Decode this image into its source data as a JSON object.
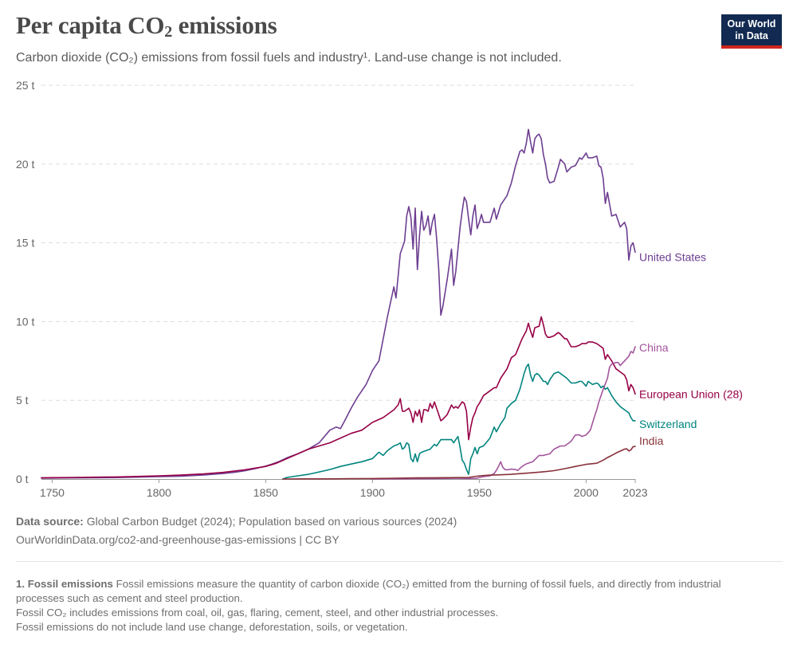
{
  "header": {
    "title_main": "Per capita CO",
    "title_sub": "2",
    "title_end": " emissions",
    "subtitle": "Carbon dioxide (CO₂) emissions from fossil fuels and industry¹. Land-use change is not included.",
    "logo_line1": "Our World",
    "logo_line2": "in Data"
  },
  "chart_data": {
    "type": "line",
    "title": "Per capita CO₂ emissions",
    "xlabel": "",
    "ylabel": "",
    "xlim": [
      1745,
      2023
    ],
    "ylim": [
      0,
      25
    ],
    "x_ticks": [
      1750,
      1800,
      1850,
      1900,
      1950,
      2000,
      2023
    ],
    "x_tick_labels": [
      "1750",
      "1800",
      "1850",
      "1900",
      "1950",
      "2000",
      "2023"
    ],
    "y_ticks": [
      0,
      5,
      10,
      15,
      20,
      25
    ],
    "y_tick_labels": [
      "0 t",
      "5 t",
      "10 t",
      "15 t",
      "20 t",
      "25 t"
    ],
    "grid": true,
    "legend": "right-end labels",
    "series": [
      {
        "name": "United States",
        "color": "#6d3e91",
        "x": [
          1745,
          1760,
          1780,
          1800,
          1810,
          1820,
          1830,
          1835,
          1840,
          1845,
          1850,
          1853,
          1856,
          1860,
          1865,
          1870,
          1875,
          1880,
          1883,
          1885,
          1887,
          1890,
          1893,
          1895,
          1897,
          1900,
          1903,
          1905,
          1907,
          1910,
          1911,
          1913,
          1915,
          1916,
          1917,
          1918,
          1919,
          1920,
          1921,
          1922,
          1923,
          1924,
          1925,
          1926,
          1927,
          1928,
          1929,
          1930,
          1931,
          1932,
          1933,
          1935,
          1937,
          1938,
          1939,
          1940,
          1941,
          1942,
          1943,
          1944,
          1945,
          1946,
          1947,
          1948,
          1949,
          1950,
          1951,
          1952,
          1955,
          1957,
          1958,
          1960,
          1963,
          1965,
          1967,
          1969,
          1970,
          1971,
          1972,
          1973,
          1974,
          1975,
          1976,
          1977,
          1978,
          1979,
          1980,
          1981,
          1982,
          1983,
          1985,
          1987,
          1988,
          1990,
          1991,
          1993,
          1995,
          1997,
          1998,
          2000,
          2001,
          2003,
          2005,
          2006,
          2007,
          2008,
          2009,
          2010,
          2012,
          2014,
          2016,
          2018,
          2019,
          2020,
          2021,
          2022,
          2023
        ],
        "values": [
          0.05,
          0.07,
          0.09,
          0.15,
          0.18,
          0.25,
          0.35,
          0.42,
          0.52,
          0.66,
          0.82,
          0.95,
          1.1,
          1.35,
          1.6,
          1.9,
          2.3,
          3.1,
          3.3,
          3.2,
          3.7,
          4.5,
          5.2,
          5.6,
          6.0,
          6.9,
          7.5,
          8.9,
          10.3,
          12.2,
          11.5,
          14.3,
          15.1,
          16.7,
          17.3,
          16.6,
          14.6,
          17.2,
          13.3,
          15.4,
          17.0,
          15.8,
          16.1,
          16.7,
          15.5,
          16.3,
          16.8,
          15.3,
          13.3,
          10.4,
          11.0,
          12.7,
          14.6,
          12.3,
          13.2,
          14.6,
          16.0,
          17.0,
          17.9,
          17.6,
          16.5,
          15.5,
          16.7,
          17.4,
          15.9,
          16.3,
          16.8,
          16.3,
          16.3,
          17.2,
          16.5,
          17.4,
          18.0,
          18.8,
          19.9,
          20.8,
          20.9,
          20.7,
          21.3,
          22.2,
          21.4,
          20.7,
          21.6,
          21.8,
          21.9,
          21.6,
          20.6,
          20.0,
          19.1,
          18.8,
          18.9,
          19.8,
          20.3,
          20.0,
          19.5,
          19.8,
          19.9,
          20.4,
          20.3,
          20.7,
          20.4,
          20.4,
          20.5,
          19.9,
          19.8,
          19.1,
          17.5,
          18.2,
          16.7,
          16.8,
          16.0,
          16.3,
          15.9,
          13.9,
          14.8,
          15.0,
          14.4
        ]
      },
      {
        "name": "European Union (28)",
        "color": "#970046",
        "x": [
          1745,
          1760,
          1780,
          1800,
          1810,
          1820,
          1830,
          1840,
          1850,
          1855,
          1860,
          1865,
          1870,
          1875,
          1880,
          1885,
          1890,
          1895,
          1900,
          1905,
          1910,
          1912,
          1913,
          1914,
          1915,
          1916,
          1917,
          1918,
          1919,
          1920,
          1921,
          1922,
          1923,
          1924,
          1925,
          1926,
          1927,
          1928,
          1929,
          1930,
          1931,
          1932,
          1933,
          1935,
          1937,
          1938,
          1939,
          1940,
          1941,
          1942,
          1943,
          1944,
          1945,
          1946,
          1947,
          1948,
          1949,
          1950,
          1952,
          1955,
          1957,
          1958,
          1960,
          1963,
          1965,
          1967,
          1970,
          1972,
          1973,
          1974,
          1975,
          1976,
          1978,
          1979,
          1980,
          1981,
          1982,
          1983,
          1985,
          1987,
          1988,
          1990,
          1991,
          1993,
          1995,
          1997,
          1998,
          2000,
          2001,
          2003,
          2005,
          2006,
          2007,
          2008,
          2009,
          2010,
          2012,
          2014,
          2016,
          2018,
          2019,
          2020,
          2021,
          2022,
          2023
        ],
        "values": [
          0.08,
          0.1,
          0.13,
          0.2,
          0.25,
          0.32,
          0.42,
          0.58,
          0.8,
          1.0,
          1.3,
          1.6,
          1.9,
          2.1,
          2.3,
          2.6,
          2.9,
          3.1,
          3.6,
          3.9,
          4.4,
          4.7,
          5.1,
          4.3,
          4.3,
          4.4,
          4.5,
          4.2,
          3.6,
          4.3,
          4.0,
          4.4,
          3.6,
          4.4,
          4.4,
          4.3,
          4.8,
          4.5,
          4.9,
          4.5,
          4.1,
          3.7,
          3.8,
          4.1,
          4.7,
          4.5,
          4.6,
          4.5,
          4.7,
          4.9,
          4.8,
          4.3,
          2.5,
          3.3,
          3.9,
          4.2,
          4.6,
          4.8,
          5.3,
          5.6,
          5.8,
          5.8,
          6.4,
          7.0,
          7.7,
          7.9,
          8.9,
          9.4,
          9.9,
          9.4,
          9.0,
          9.6,
          9.7,
          10.3,
          9.8,
          9.2,
          9.0,
          9.0,
          9.1,
          9.3,
          9.2,
          8.9,
          8.9,
          8.4,
          8.4,
          8.5,
          8.6,
          8.6,
          8.7,
          8.7,
          8.6,
          8.5,
          8.4,
          8.3,
          7.6,
          7.9,
          7.5,
          7.0,
          6.8,
          6.6,
          6.3,
          5.6,
          6.0,
          5.8,
          5.4
        ]
      },
      {
        "name": "Switzerland",
        "color": "#00847e",
        "x": [
          1858,
          1860,
          1865,
          1870,
          1875,
          1880,
          1885,
          1890,
          1895,
          1900,
          1903,
          1905,
          1907,
          1910,
          1912,
          1913,
          1914,
          1915,
          1916,
          1917,
          1918,
          1919,
          1920,
          1921,
          1922,
          1923,
          1925,
          1927,
          1929,
          1930,
          1931,
          1932,
          1933,
          1935,
          1937,
          1938,
          1940,
          1941,
          1942,
          1943,
          1944,
          1945,
          1946,
          1947,
          1948,
          1949,
          1950,
          1952,
          1955,
          1957,
          1958,
          1960,
          1962,
          1963,
          1965,
          1967,
          1969,
          1970,
          1971,
          1972,
          1973,
          1974,
          1975,
          1976,
          1977,
          1978,
          1979,
          1980,
          1981,
          1982,
          1983,
          1985,
          1987,
          1988,
          1990,
          1991,
          1993,
          1995,
          1997,
          1998,
          2000,
          2001,
          2003,
          2005,
          2006,
          2007,
          2008,
          2009,
          2010,
          2012,
          2014,
          2016,
          2018,
          2019,
          2020,
          2021,
          2022,
          2023
        ],
        "values": [
          0.0,
          0.1,
          0.2,
          0.3,
          0.45,
          0.6,
          0.8,
          0.95,
          1.1,
          1.3,
          1.7,
          1.5,
          1.8,
          2.1,
          2.2,
          2.3,
          1.9,
          2.0,
          2.3,
          2.2,
          1.3,
          1.1,
          1.6,
          1.1,
          1.6,
          1.7,
          1.8,
          1.9,
          2.2,
          2.1,
          2.3,
          2.5,
          2.5,
          2.5,
          2.5,
          2.3,
          2.7,
          2.0,
          1.2,
          1.0,
          0.6,
          0.3,
          1.3,
          1.6,
          2.0,
          1.6,
          2.0,
          2.1,
          2.6,
          3.3,
          3.0,
          3.5,
          3.9,
          4.5,
          4.8,
          5.0,
          5.7,
          6.2,
          6.7,
          7.1,
          7.3,
          6.6,
          6.2,
          6.6,
          6.7,
          6.6,
          6.4,
          6.2,
          6.2,
          6.0,
          6.3,
          6.7,
          6.8,
          6.7,
          6.5,
          6.4,
          6.1,
          6.1,
          6.2,
          6.2,
          5.9,
          6.2,
          6.0,
          6.1,
          6.0,
          5.8,
          5.9,
          5.7,
          5.8,
          5.3,
          4.9,
          4.6,
          4.4,
          4.3,
          4.2,
          3.9,
          3.7,
          3.7
        ]
      },
      {
        "name": "China",
        "color": "#a2559c",
        "x": [
          1899,
          1905,
          1910,
          1915,
          1920,
          1925,
          1930,
          1935,
          1940,
          1945,
          1949,
          1950,
          1952,
          1955,
          1957,
          1958,
          1959,
          1960,
          1961,
          1962,
          1963,
          1965,
          1967,
          1968,
          1970,
          1972,
          1975,
          1978,
          1980,
          1983,
          1985,
          1988,
          1990,
          1993,
          1995,
          1997,
          1998,
          2000,
          2002,
          2004,
          2005,
          2006,
          2008,
          2010,
          2011,
          2012,
          2014,
          2015,
          2016,
          2018,
          2020,
          2021,
          2022,
          2023
        ],
        "values": [
          0.0,
          0.0,
          0.01,
          0.01,
          0.02,
          0.02,
          0.03,
          0.04,
          0.05,
          0.03,
          0.05,
          0.1,
          0.15,
          0.2,
          0.35,
          0.55,
          0.8,
          1.1,
          0.75,
          0.6,
          0.58,
          0.63,
          0.6,
          0.54,
          0.8,
          0.96,
          1.1,
          1.5,
          1.5,
          1.6,
          1.9,
          2.1,
          2.1,
          2.4,
          2.8,
          2.8,
          2.7,
          2.8,
          3.1,
          4.0,
          4.4,
          4.9,
          5.7,
          6.4,
          7.1,
          7.3,
          7.4,
          7.4,
          7.2,
          7.5,
          7.8,
          8.1,
          8.0,
          8.4
        ]
      },
      {
        "name": "India",
        "color": "#883039",
        "x": [
          1858,
          1870,
          1880,
          1890,
          1900,
          1910,
          1920,
          1930,
          1940,
          1945,
          1950,
          1955,
          1960,
          1965,
          1970,
          1975,
          1980,
          1985,
          1990,
          1995,
          2000,
          2005,
          2008,
          2010,
          2012,
          2014,
          2016,
          2018,
          2019,
          2020,
          2021,
          2022,
          2023
        ],
        "values": [
          0.0,
          0.01,
          0.01,
          0.02,
          0.03,
          0.05,
          0.07,
          0.08,
          0.09,
          0.1,
          0.2,
          0.25,
          0.27,
          0.3,
          0.35,
          0.4,
          0.46,
          0.53,
          0.66,
          0.8,
          0.93,
          1.0,
          1.2,
          1.36,
          1.5,
          1.65,
          1.77,
          1.9,
          1.92,
          1.78,
          1.85,
          2.05,
          2.07
        ]
      }
    ]
  },
  "labels": {
    "us": "United States",
    "china": "China",
    "eu": "European Union (28)",
    "ch": "Switzerland",
    "india": "India"
  },
  "footer": {
    "source_label": "Data source:",
    "source_text": " Global Carbon Budget (2024); Population based on various sources (2024)",
    "url_line": "OurWorldinData.org/co2-and-greenhouse-gas-emissions  | CC BY",
    "note_label": "1. Fossil emissions",
    "note_line1": " Fossil emissions measure the quantity of carbon dioxide (CO₂) emitted from the burning of fossil fuels, and directly from industrial processes such as cement and steel production.",
    "note_line2": "Fossil CO₂ includes emissions from coal, oil, gas, flaring, cement, steel, and other industrial processes.",
    "note_line3": "Fossil emissions do not include land use change, deforestation, soils, or vegetation."
  }
}
